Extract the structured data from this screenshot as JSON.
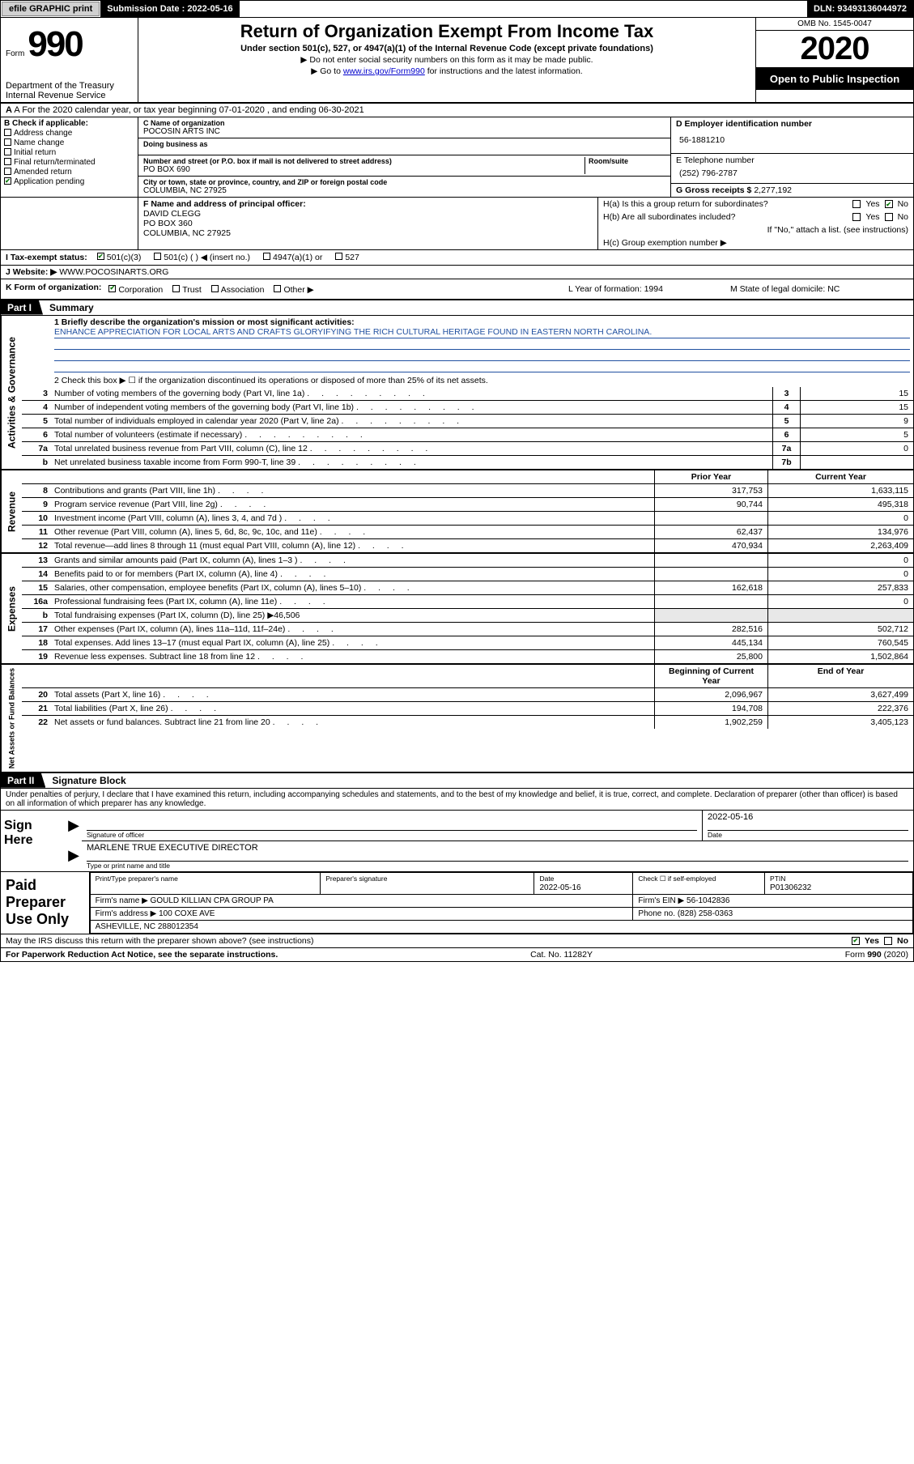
{
  "colors": {
    "black": "#000000",
    "white": "#ffffff",
    "link_blue": "#0000cc",
    "rule_blue": "#2050a0",
    "check_green": "#0b7a0b",
    "btn_gray": "#d0d0d0",
    "shade_gray": "#e8e8e8"
  },
  "fonts": {
    "base_family": "Arial, Helvetica, sans-serif",
    "base_size_pt": 8,
    "title_size_pt": 17,
    "year_size_pt": 30,
    "form_num_size_pt": 33
  },
  "topbar": {
    "efile": "efile GRAPHIC print",
    "submission": "Submission Date : 2022-05-16",
    "dln": "DLN: 93493136044972"
  },
  "header": {
    "form_word": "Form",
    "form_num": "990",
    "dept": "Department of the Treasury\nInternal Revenue Service",
    "title": "Return of Organization Exempt From Income Tax",
    "subtitle": "Under section 501(c), 527, or 4947(a)(1) of the Internal Revenue Code (except private foundations)",
    "line1": "▶ Do not enter social security numbers on this form as it may be made public.",
    "line2_pre": "▶ Go to ",
    "line2_link": "www.irs.gov/Form990",
    "line2_post": " for instructions and the latest information.",
    "omb": "OMB No. 1545-0047",
    "year": "2020",
    "open": "Open to Public Inspection"
  },
  "row_a": "A For the 2020 calendar year, or tax year beginning 07-01-2020    , and ending 06-30-2021",
  "box_b": {
    "label": "B Check if applicable:",
    "items": [
      {
        "txt": "Address change",
        "ck": false
      },
      {
        "txt": "Name change",
        "ck": false
      },
      {
        "txt": "Initial return",
        "ck": false
      },
      {
        "txt": "Final return/terminated",
        "ck": false
      },
      {
        "txt": "Amended return",
        "ck": false
      },
      {
        "txt": "Application pending",
        "ck": true
      }
    ]
  },
  "box_c": {
    "name_lbl": "C Name of organization",
    "name": "POCOSIN ARTS INC",
    "dba_lbl": "Doing business as",
    "dba": "",
    "addr_lbl": "Number and street (or P.O. box if mail is not delivered to street address)",
    "room_lbl": "Room/suite",
    "addr": "PO BOX 690",
    "city_lbl": "City or town, state or province, country, and ZIP or foreign postal code",
    "city": "COLUMBIA, NC  27925"
  },
  "box_d": {
    "ein_lbl": "D Employer identification number",
    "ein": "56-1881210",
    "phone_lbl": "E Telephone number",
    "phone": "(252) 796-2787",
    "gross_lbl": "G Gross receipts $",
    "gross": "2,277,192"
  },
  "box_f": {
    "lbl": "F Name and address of principal officer:",
    "name": "DAVID CLEGG",
    "addr1": "PO BOX 360",
    "addr2": "COLUMBIA, NC  27925"
  },
  "box_h": {
    "a_lbl": "H(a)  Is this a group return for subordinates?",
    "a_yes": false,
    "a_no": true,
    "b_lbl": "H(b)  Are all subordinates included?",
    "b_yes": false,
    "b_no": false,
    "b_note": "If \"No,\" attach a list. (see instructions)",
    "c_lbl": "H(c)  Group exemption number ▶"
  },
  "row_i": {
    "label": "I  Tax-exempt status:",
    "opts": [
      {
        "txt": "501(c)(3)",
        "ck": true
      },
      {
        "txt": "501(c) (   ) ◀ (insert no.)",
        "ck": false
      },
      {
        "txt": "4947(a)(1) or",
        "ck": false
      },
      {
        "txt": "527",
        "ck": false
      }
    ]
  },
  "row_j": {
    "label": "J  Website: ▶",
    "val": "WWW.POCOSINARTS.ORG"
  },
  "row_k": {
    "label": "K Form of organization:",
    "opts": [
      {
        "txt": "Corporation",
        "ck": true
      },
      {
        "txt": "Trust",
        "ck": false
      },
      {
        "txt": "Association",
        "ck": false
      },
      {
        "txt": "Other ▶",
        "ck": false
      }
    ],
    "l": "L Year of formation: 1994",
    "m": "M State of legal domicile: NC"
  },
  "part1": {
    "tab": "Part I",
    "title": "Summary",
    "side1": "Activities & Governance",
    "mission_lbl": "1  Briefly describe the organization's mission or most significant activities:",
    "mission": "ENHANCE APPRECIATION FOR LOCAL ARTS AND CRAFTS GLORYIFYING THE RICH CULTURAL HERITAGE FOUND IN EASTERN NORTH CAROLINA.",
    "line2": "2   Check this box ▶ ☐  if the organization discontinued its operations or disposed of more than 25% of its net assets.",
    "gov_lines": [
      {
        "n": "3",
        "t": "Number of voting members of the governing body (Part VI, line 1a)",
        "cell": "3",
        "v": "15"
      },
      {
        "n": "4",
        "t": "Number of independent voting members of the governing body (Part VI, line 1b)",
        "cell": "4",
        "v": "15"
      },
      {
        "n": "5",
        "t": "Total number of individuals employed in calendar year 2020 (Part V, line 2a)",
        "cell": "5",
        "v": "9"
      },
      {
        "n": "6",
        "t": "Total number of volunteers (estimate if necessary)",
        "cell": "6",
        "v": "5"
      },
      {
        "n": "7a",
        "t": "Total unrelated business revenue from Part VIII, column (C), line 12",
        "cell": "7a",
        "v": "0"
      },
      {
        "n": "b",
        "t": "Net unrelated business taxable income from Form 990-T, line 39",
        "cell": "7b",
        "v": ""
      }
    ],
    "hdr_prior": "Prior Year",
    "hdr_cur": "Current Year",
    "side2": "Revenue",
    "rev_lines": [
      {
        "n": "8",
        "t": "Contributions and grants (Part VIII, line 1h)",
        "p": "317,753",
        "c": "1,633,115"
      },
      {
        "n": "9",
        "t": "Program service revenue (Part VIII, line 2g)",
        "p": "90,744",
        "c": "495,318"
      },
      {
        "n": "10",
        "t": "Investment income (Part VIII, column (A), lines 3, 4, and 7d )",
        "p": "",
        "c": "0"
      },
      {
        "n": "11",
        "t": "Other revenue (Part VIII, column (A), lines 5, 6d, 8c, 9c, 10c, and 11e)",
        "p": "62,437",
        "c": "134,976"
      },
      {
        "n": "12",
        "t": "Total revenue—add lines 8 through 11 (must equal Part VIII, column (A), line 12)",
        "p": "470,934",
        "c": "2,263,409"
      }
    ],
    "side3": "Expenses",
    "exp_lines": [
      {
        "n": "13",
        "t": "Grants and similar amounts paid (Part IX, column (A), lines 1–3 )",
        "p": "",
        "c": "0"
      },
      {
        "n": "14",
        "t": "Benefits paid to or for members (Part IX, column (A), line 4)",
        "p": "",
        "c": "0"
      },
      {
        "n": "15",
        "t": "Salaries, other compensation, employee benefits (Part IX, column (A), lines 5–10)",
        "p": "162,618",
        "c": "257,833"
      },
      {
        "n": "16a",
        "t": "Professional fundraising fees (Part IX, column (A), line 11e)",
        "p": "",
        "c": "0"
      },
      {
        "n": "b",
        "t": "Total fundraising expenses (Part IX, column (D), line 25) ▶46,506",
        "p": "shade",
        "c": "shade"
      },
      {
        "n": "17",
        "t": "Other expenses (Part IX, column (A), lines 11a–11d, 11f–24e)",
        "p": "282,516",
        "c": "502,712"
      },
      {
        "n": "18",
        "t": "Total expenses. Add lines 13–17 (must equal Part IX, column (A), line 25)",
        "p": "445,134",
        "c": "760,545"
      },
      {
        "n": "19",
        "t": "Revenue less expenses. Subtract line 18 from line 12",
        "p": "25,800",
        "c": "1,502,864"
      }
    ],
    "hdr_begin": "Beginning of Current Year",
    "hdr_end": "End of Year",
    "side4": "Net Assets or Fund Balances",
    "na_lines": [
      {
        "n": "20",
        "t": "Total assets (Part X, line 16)",
        "p": "2,096,967",
        "c": "3,627,499"
      },
      {
        "n": "21",
        "t": "Total liabilities (Part X, line 26)",
        "p": "194,708",
        "c": "222,376"
      },
      {
        "n": "22",
        "t": "Net assets or fund balances. Subtract line 21 from line 20",
        "p": "1,902,259",
        "c": "3,405,123"
      }
    ]
  },
  "part2": {
    "tab": "Part II",
    "title": "Signature Block",
    "perjury": "Under penalties of perjury, I declare that I have examined this return, including accompanying schedules and statements, and to the best of my knowledge and belief, it is true, correct, and complete. Declaration of preparer (other than officer) is based on all information of which preparer has any knowledge."
  },
  "sign": {
    "label": "Sign Here",
    "sig_lbl": "Signature of officer",
    "date_lbl": "Date",
    "date": "2022-05-16",
    "name": "MARLENE TRUE  EXECUTIVE DIRECTOR",
    "name_lbl": "Type or print name and title"
  },
  "paid": {
    "label": "Paid Preparer Use Only",
    "h1": "Print/Type preparer's name",
    "h2": "Preparer's signature",
    "h3": "Date",
    "h3v": "2022-05-16",
    "h4": "Check ☐ if self-employed",
    "h5": "PTIN",
    "h5v": "P01306232",
    "firm_lbl": "Firm's name     ▶",
    "firm": "GOULD KILLIAN CPA GROUP PA",
    "ein_lbl": "Firm's EIN ▶",
    "ein": "56-1042836",
    "addr_lbl": "Firm's address ▶",
    "addr1": "100 COXE AVE",
    "addr2": "ASHEVILLE, NC  288012354",
    "phone_lbl": "Phone no.",
    "phone": "(828) 258-0363"
  },
  "footer": {
    "discuss": "May the IRS discuss this return with the preparer shown above? (see instructions)",
    "discuss_yes": true,
    "discuss_no": false,
    "pra": "For Paperwork Reduction Act Notice, see the separate instructions.",
    "cat": "Cat. No. 11282Y",
    "form": "Form 990 (2020)"
  }
}
